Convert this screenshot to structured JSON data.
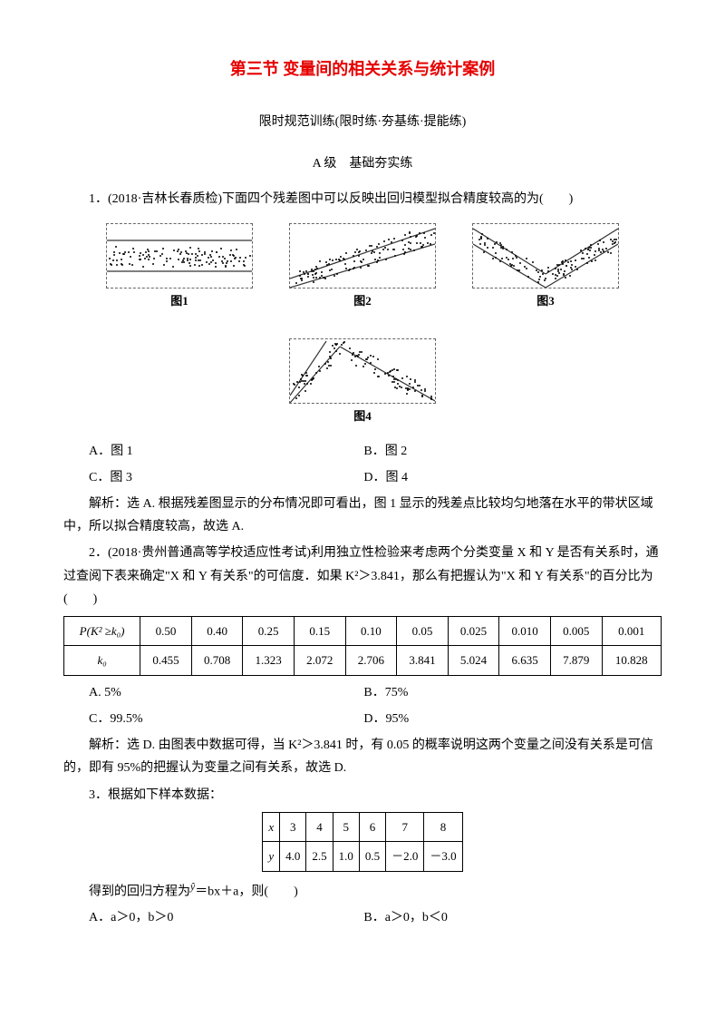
{
  "title": "第三节 变量间的相关关系与统计案例",
  "subtitle": "限时规范训练(限时练·夯基练·提能练)",
  "level": "A 级　基础夯实练",
  "q1": {
    "stem": "1．(2018·吉林长春质检)下面四个残差图中可以反映出回归模型拟合精度较高的为(　　)",
    "figlabels": [
      "图1",
      "图2",
      "图3",
      "图4"
    ],
    "optA": "A．图 1",
    "optB": "B．图 2",
    "optC": "C．图 3",
    "optD": "D．图 4",
    "answer": "解析：选 A. 根据残差图显示的分布情况即可看出，图 1 显示的残差点比较均匀地落在水平的带状区域中，所以拟合精度较高，故选 A."
  },
  "q2": {
    "stem1": "2．(2018·贵州普通高等学校适应性考试)利用独立性检验来考虑两个分类变量 X 和 Y 是否有关系时，通过查阅下表来确定\"X 和 Y 有关系\"的可信度．如果 K²＞3.841，那么有把握认为\"X 和 Y 有关系\"的百分比为(　　)",
    "header": "P(K² ≥k₀)",
    "krow": "k₀",
    "p": [
      "0.50",
      "0.40",
      "0.25",
      "0.15",
      "0.10",
      "0.05",
      "0.025",
      "0.010",
      "0.005",
      "0.001"
    ],
    "k": [
      "0.455",
      "0.708",
      "1.323",
      "2.072",
      "2.706",
      "3.841",
      "5.024",
      "6.635",
      "7.879",
      "10.828"
    ],
    "optA": "A. 5%",
    "optB": "B．75%",
    "optC": "C．99.5%",
    "optD": "D．95%",
    "answer": "解析：选 D. 由图表中数据可得，当 K²＞3.841 时，有 0.05 的概率说明这两个变量之间没有关系是可信的，即有 95%的把握认为变量之间有关系，故选 D."
  },
  "q3": {
    "stem": "3．根据如下样本数据：",
    "xlabel": "x",
    "ylabel": "y",
    "x": [
      "3",
      "4",
      "5",
      "6",
      "7",
      "8"
    ],
    "y": [
      "4.0",
      "2.5",
      "1.0",
      "0.5",
      "－2.0",
      "－3.0"
    ],
    "stem2_pre": "得到的回归方程为",
    "stem2_eq": "ŷ",
    "stem2_post": "＝bx＋a，则(　　)",
    "optA": "A．a＞0，b＞0",
    "optB": "B．a＞0，b＜0"
  },
  "figs": {
    "colors": {
      "border": "#666666",
      "line": "#333333",
      "dot": "#000000"
    },
    "fig1": {
      "type": "scatter-band",
      "lines": [
        [
          0,
          18,
          160,
          18
        ],
        [
          0,
          52,
          160,
          52
        ]
      ]
    },
    "fig2": {
      "type": "scatter-band",
      "lines": [
        [
          0,
          60,
          160,
          5
        ],
        [
          0,
          70,
          160,
          22
        ]
      ]
    },
    "fig3": {
      "type": "scatter-band",
      "lines": [
        [
          0,
          5,
          80,
          55
        ],
        [
          80,
          55,
          160,
          5
        ],
        [
          0,
          22,
          80,
          70
        ],
        [
          80,
          70,
          160,
          22
        ]
      ]
    },
    "fig4": {
      "type": "scatter-band",
      "lines": [
        [
          0,
          70,
          55,
          8
        ],
        [
          55,
          8,
          160,
          68
        ],
        [
          0,
          62,
          40,
          2
        ]
      ]
    }
  }
}
